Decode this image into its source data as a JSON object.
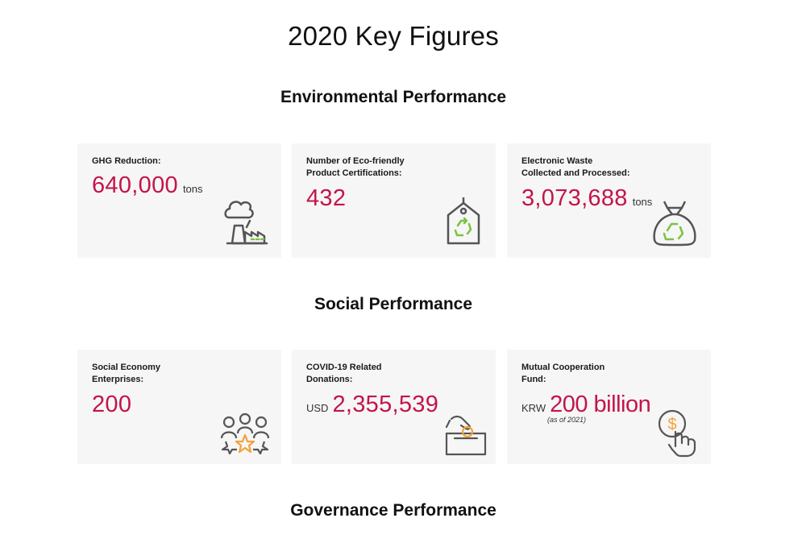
{
  "title": "2020 Key Figures",
  "sections": {
    "environmental": "Environmental Performance",
    "social": "Social Performance",
    "governance": "Governance Performance"
  },
  "environmental_cards": [
    {
      "label": "GHG Reduction:",
      "value": "640,000",
      "unit": "tons",
      "icon": "factory-icon"
    },
    {
      "label_line1": "Number of Eco-friendly",
      "label_line2": "Product Certifications:",
      "value": "432",
      "icon": "recycle-tag-icon"
    },
    {
      "label_line1": "Electronic Waste",
      "label_line2": "Collected and Processed:",
      "value": "3,073,688",
      "unit": "tons",
      "icon": "recycle-bag-icon"
    }
  ],
  "social_cards": [
    {
      "label_line1": "Social Economy",
      "label_line2": "Enterprises:",
      "value": "200",
      "icon": "people-star-icon"
    },
    {
      "label_line1": "COVID-19 Related",
      "label_line2": "Donations:",
      "prefix": "USD",
      "value": "2,355,539",
      "icon": "donation-box-icon"
    },
    {
      "label_line1": "Mutual Cooperation",
      "label_line2": "Fund:",
      "prefix": "KRW",
      "value": "200 billion",
      "note": "(as of 2021)",
      "icon": "coin-hand-icon"
    }
  ],
  "colors": {
    "accent": "#c4144a",
    "icon_green": "#7cc242",
    "icon_orange": "#f4a23a",
    "icon_gray": "#555555",
    "card_bg": "#f6f6f6"
  }
}
